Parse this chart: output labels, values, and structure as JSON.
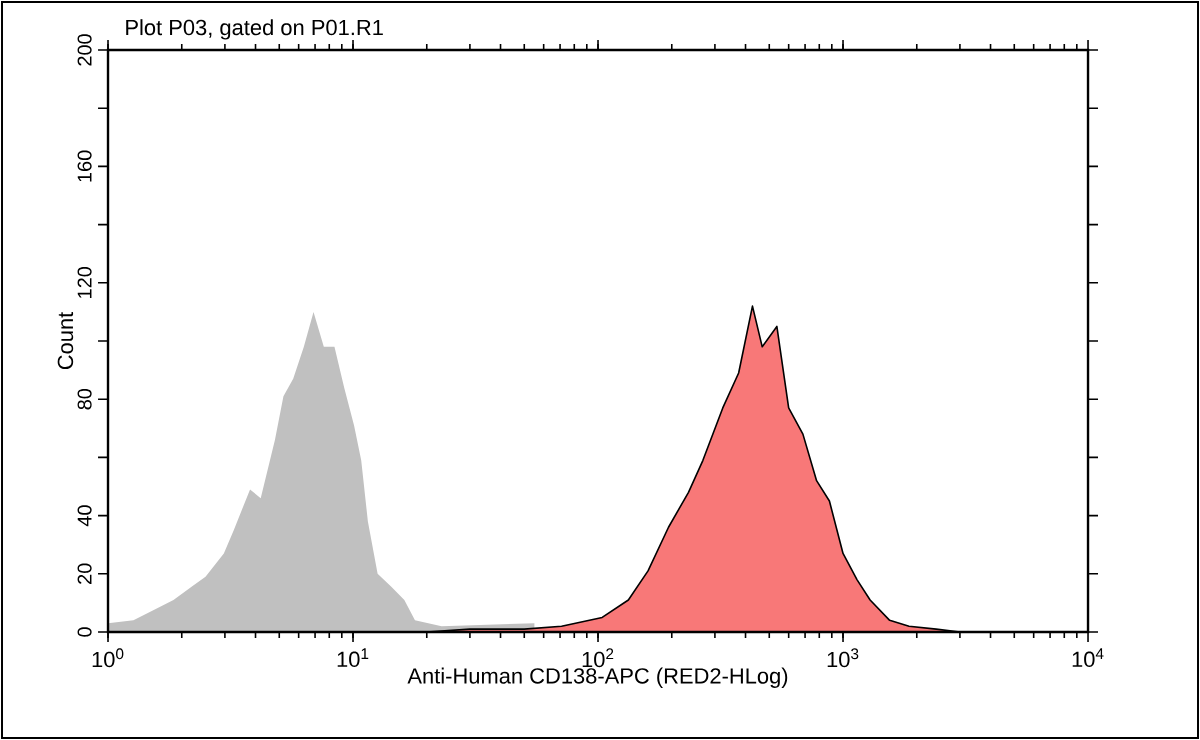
{
  "chart_data": {
    "type": "area",
    "title": "Plot P03, gated on P01.R1",
    "xlabel": "Anti-Human CD138-APC (RED2-HLog)",
    "ylabel": "Count",
    "log": "x",
    "xlim": [
      1,
      10000
    ],
    "xticks": [
      {
        "value": 1,
        "label": "10$^{0}$"
      },
      {
        "value": 10,
        "label": "10$^{1}$"
      },
      {
        "value": 100,
        "label": "10$^{2}$"
      },
      {
        "value": 1000,
        "label": "10$^{3}$"
      },
      {
        "value": 10000,
        "label": "10$^{4}$"
      }
    ],
    "ylim": [
      0,
      200
    ],
    "yticks": [
      0,
      20,
      40,
      {
        "value": 60,
        "label": null
      },
      80,
      {
        "value": 100,
        "label": null
      },
      120,
      {
        "value": 140,
        "label": null
      },
      160,
      {
        "value": 180,
        "label": null
      },
      200
    ],
    "series": [
      {
        "color": "#c0c0c0",
        "x": [
          1.0,
          1.27,
          1.53,
          1.85,
          2.2,
          2.5,
          2.97,
          3.26,
          3.8,
          4.2,
          4.8,
          5.2,
          5.7,
          6.3,
          6.9,
          7.6,
          8.4,
          9.2,
          10.1,
          10.8,
          11.5,
          12.6,
          14.3,
          16.2,
          17.9,
          23,
          55
        ],
        "values": [
          3,
          4,
          7.5,
          11,
          15.6,
          19,
          27,
          35,
          49,
          46,
          66,
          81,
          87,
          98,
          110,
          98,
          98,
          84,
          71,
          59,
          38,
          20,
          15.6,
          11,
          4,
          2,
          3
        ]
      },
      {
        "color": "#f87878",
        "x": [
          20,
          30,
          50,
          71,
          104,
          133,
          160,
          194,
          234,
          268,
          323,
          375,
          427,
          468,
          537,
          600,
          686,
          780,
          880,
          1000,
          1140,
          1290,
          1550,
          1860,
          2400,
          3000
        ],
        "values": [
          0,
          1,
          1,
          2,
          5,
          11,
          21,
          36,
          48,
          59,
          77,
          89,
          112,
          98,
          105,
          77,
          68,
          52,
          45,
          27,
          18,
          11,
          4,
          2,
          1,
          0
        ]
      }
    ]
  }
}
